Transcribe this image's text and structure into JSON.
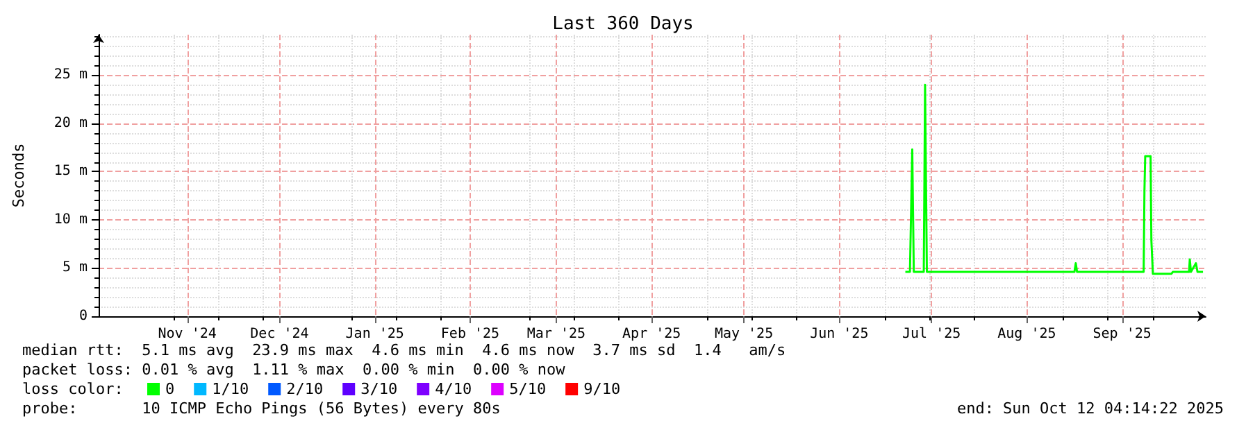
{
  "chart_data": {
    "type": "line",
    "title": "Last 360 Days",
    "ylabel": "Seconds",
    "legend_title": "loss color:",
    "x": [
      "2025-07-06T12:00",
      "2025-07-08T00:00",
      "2025-07-08T18:00",
      "2025-07-09T06:00",
      "2025-07-12T12:00",
      "2025-07-12T22:00",
      "2025-07-13T12:00",
      "2025-08-30T12:00",
      "2025-08-30T22:00",
      "2025-08-31T08:00",
      "2025-09-22T00:00",
      "2025-09-22T06:00",
      "2025-09-22T12:00",
      "2025-09-24T06:00",
      "2025-09-24T12:00",
      "2025-09-25T00:00",
      "2025-10-01T00:00",
      "2025-10-01T12:00",
      "2025-10-06T18:00",
      "2025-10-07T00:00",
      "2025-10-07T09:00",
      "2025-10-09T00:00",
      "2025-10-09T12:00",
      "2025-10-11T07:00"
    ],
    "series": [
      {
        "name": "0",
        "color": "#00ff00",
        "values": [
          4.6,
          4.6,
          17.3,
          4.6,
          4.6,
          24.0,
          4.6,
          4.6,
          5.5,
          4.6,
          4.6,
          13.0,
          16.6,
          16.6,
          7.9,
          4.4,
          4.4,
          4.6,
          4.6,
          5.9,
          4.6,
          5.5,
          4.6,
          4.6
        ]
      },
      {
        "name": "1/10",
        "color": "#00b8ff",
        "values": [
          null,
          null,
          null,
          null,
          null,
          null,
          null,
          null,
          null,
          null,
          null,
          null,
          null,
          null,
          null,
          null,
          null,
          null,
          null,
          null,
          null,
          null,
          null,
          null
        ]
      },
      {
        "name": "2/10",
        "color": "#0059ff",
        "values": [
          null,
          null,
          null,
          null,
          null,
          null,
          null,
          null,
          null,
          null,
          null,
          null,
          null,
          null,
          null,
          null,
          null,
          null,
          null,
          null,
          null,
          null,
          null,
          null
        ]
      },
      {
        "name": "3/10",
        "color": "#5e00ff",
        "values": [
          null,
          null,
          null,
          null,
          null,
          null,
          null,
          null,
          null,
          null,
          null,
          null,
          null,
          null,
          null,
          null,
          null,
          null,
          null,
          null,
          null,
          null,
          null,
          null
        ]
      },
      {
        "name": "4/10",
        "color": "#7e00ff",
        "values": [
          null,
          null,
          null,
          null,
          null,
          null,
          null,
          null,
          null,
          null,
          null,
          null,
          null,
          null,
          null,
          null,
          null,
          null,
          null,
          null,
          null,
          null,
          null,
          null
        ]
      },
      {
        "name": "5/10",
        "color": "#dd00ff",
        "values": [
          null,
          null,
          null,
          null,
          null,
          null,
          null,
          null,
          null,
          null,
          null,
          null,
          null,
          null,
          null,
          null,
          null,
          null,
          null,
          null,
          null,
          null,
          null,
          null
        ]
      },
      {
        "name": "9/10",
        "color": "#ff0000",
        "values": [
          null,
          null,
          null,
          null,
          null,
          null,
          null,
          null,
          null,
          null,
          null,
          null,
          null,
          null,
          null,
          null,
          null,
          null,
          null,
          null,
          null,
          null,
          null,
          null
        ]
      }
    ],
    "xlim": [
      "2024-10-17T04:14",
      "2025-10-12T04:14"
    ],
    "xticks": [
      {
        "value": "2024-11-15",
        "label": "Nov '24"
      },
      {
        "value": "2024-12-15",
        "label": "Dec '24"
      },
      {
        "value": "2025-01-15",
        "label": "Jan '25"
      },
      {
        "value": "2025-02-15",
        "label": "Feb '25"
      },
      {
        "value": "2025-03-15",
        "label": "Mar '25"
      },
      {
        "value": "2025-04-15",
        "label": "Apr '25"
      },
      {
        "value": "2025-05-15",
        "label": "May '25"
      },
      {
        "value": "2025-06-15",
        "label": "Jun '25"
      },
      {
        "value": "2025-07-15",
        "label": "Jul '25"
      },
      {
        "value": "2025-08-15",
        "label": "Aug '25"
      },
      {
        "value": "2025-09-15",
        "label": "Sep '25"
      }
    ],
    "ylim": [
      0,
      29.2
    ],
    "yticks": [
      0,
      {
        "value": 5,
        "label": "5 m"
      },
      {
        "value": 10,
        "label": "10 m"
      },
      {
        "value": 15,
        "label": "15 m"
      },
      {
        "value": 20,
        "label": "20 m"
      },
      {
        "value": 25,
        "label": "25 m"
      }
    ],
    "grid": true,
    "legend": "bottom left",
    "marker": "none",
    "line_style": "solid",
    "annotations": [
      "median rtt:  5.1 ms avg  23.9 ms max  4.6 ms min  4.6 ms now  3.7 ms sd  1.4   am/s",
      "packet loss: 0.01 % avg  1.11 % max  0.00 % min  0.00 % now",
      "probe:       10 ICMP Echo Pings (56 Bytes) every 80s",
      "end: Sun Oct 12 04:14:22 2025"
    ]
  }
}
